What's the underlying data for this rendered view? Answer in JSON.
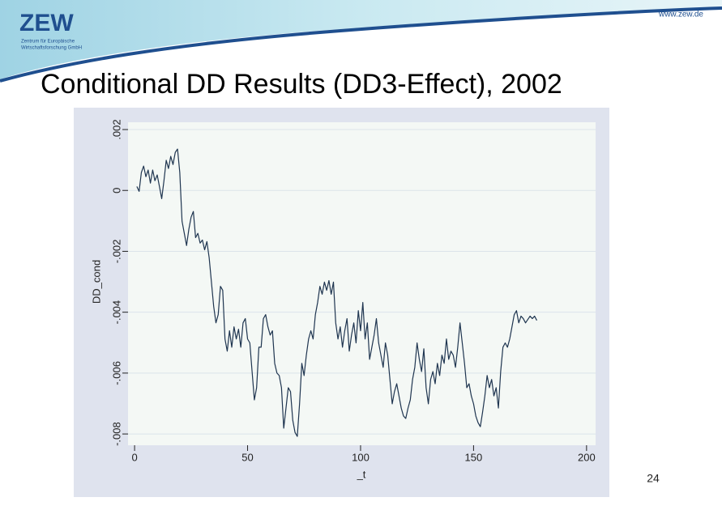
{
  "slide": {
    "title": "Conditional DD Results (DD3-Effect), 2002",
    "page_number": "24",
    "url": "www.zew.de",
    "logo": {
      "name": "ZEW",
      "subtitle_1": "Zentrum für Europäische",
      "subtitle_2": "Wirtschaftsforschung GmbH"
    }
  },
  "chart_data": {
    "type": "line",
    "xlabel": "_t",
    "ylabel": "DD_cond",
    "color": "#1f3550",
    "grid": true,
    "xlim": [
      -2.9,
      204
    ],
    "xticks": [
      0,
      50,
      100,
      150,
      200
    ],
    "ylim": [
      -0.00837,
      0.00224
    ],
    "yticks": [
      {
        "value": 0.002,
        "label": ".002"
      },
      0,
      {
        "value": -0.002,
        "label": "-.002"
      },
      {
        "value": -0.004,
        "label": "-.004"
      },
      {
        "value": -0.006,
        "label": "-.006"
      },
      {
        "value": -0.008,
        "label": "-.008"
      }
    ],
    "x": [
      1,
      2,
      3,
      4,
      5,
      6,
      7,
      8,
      9,
      10,
      11,
      12,
      13,
      14,
      15,
      16,
      17,
      18,
      19,
      20,
      21,
      22,
      23,
      24,
      25,
      26,
      27,
      28,
      29,
      30,
      31,
      32,
      33,
      34,
      35,
      36,
      37,
      38,
      39,
      40,
      41,
      42,
      43,
      44,
      45,
      46,
      47,
      48,
      49,
      50,
      51,
      52,
      53,
      54,
      55,
      56,
      57,
      58,
      59,
      60,
      61,
      62,
      63,
      64,
      65,
      66,
      67,
      68,
      69,
      70,
      71,
      72,
      73,
      74,
      75,
      76,
      77,
      78,
      79,
      80,
      81,
      82,
      83,
      84,
      85,
      86,
      87,
      88,
      89,
      90,
      91,
      92,
      93,
      94,
      95,
      96,
      97,
      98,
      99,
      100,
      101,
      102,
      103,
      104,
      105,
      106,
      107,
      108,
      109,
      110,
      111,
      112,
      113,
      114,
      115,
      116,
      117,
      118,
      119,
      120,
      121,
      122,
      123,
      124,
      125,
      126,
      127,
      128,
      129,
      130,
      131,
      132,
      133,
      134,
      135,
      136,
      137,
      138,
      139,
      140,
      141,
      142,
      143,
      144,
      145,
      146,
      147,
      148,
      149,
      150,
      151,
      152,
      153,
      154,
      155,
      156,
      157,
      158,
      159,
      160,
      161,
      162,
      163,
      164,
      165,
      166,
      167,
      168,
      169,
      170,
      171,
      172,
      173,
      174,
      175,
      176,
      177,
      178
    ],
    "values": [
      0.00013,
      -3e-05,
      0.00059,
      0.0008,
      0.00045,
      0.00067,
      0.00024,
      0.00067,
      0.00032,
      0.00051,
      0.00013,
      -0.00027,
      0.00032,
      0.00099,
      0.00072,
      0.00112,
      0.00085,
      0.00125,
      0.00136,
      0.00059,
      -0.00101,
      -0.00141,
      -0.00181,
      -0.00128,
      -0.00088,
      -0.00069,
      -0.00155,
      -0.00141,
      -0.00173,
      -0.00163,
      -0.00195,
      -0.00168,
      -0.00221,
      -0.00301,
      -0.00381,
      -0.00435,
      -0.00408,
      -0.00315,
      -0.00328,
      -0.00488,
      -0.00528,
      -0.00461,
      -0.00515,
      -0.00448,
      -0.00488,
      -0.00456,
      -0.00515,
      -0.00435,
      -0.00421,
      -0.00488,
      -0.00501,
      -0.00595,
      -0.00688,
      -0.00648,
      -0.00515,
      -0.00515,
      -0.00421,
      -0.00408,
      -0.00448,
      -0.00475,
      -0.00461,
      -0.00568,
      -0.006,
      -0.00608,
      -0.00648,
      -0.00781,
      -0.00715,
      -0.00648,
      -0.00661,
      -0.00755,
      -0.00795,
      -0.00808,
      -0.00701,
      -0.00568,
      -0.00608,
      -0.00541,
      -0.00488,
      -0.00461,
      -0.00488,
      -0.00408,
      -0.00368,
      -0.00315,
      -0.00341,
      -0.00301,
      -0.00328,
      -0.00296,
      -0.00341,
      -0.00301,
      -0.00435,
      -0.00488,
      -0.00448,
      -0.00515,
      -0.00461,
      -0.00421,
      -0.00528,
      -0.00475,
      -0.00435,
      -0.00501,
      -0.00395,
      -0.00461,
      -0.00368,
      -0.00488,
      -0.00435,
      -0.00555,
      -0.00515,
      -0.00475,
      -0.00421,
      -0.00501,
      -0.00541,
      -0.00581,
      -0.00501,
      -0.00541,
      -0.00621,
      -0.00701,
      -0.00661,
      -0.00635,
      -0.00675,
      -0.00715,
      -0.00741,
      -0.00749,
      -0.00715,
      -0.00688,
      -0.00621,
      -0.00581,
      -0.00501,
      -0.00555,
      -0.00595,
      -0.0052,
      -0.00648,
      -0.00701,
      -0.00621,
      -0.00595,
      -0.00635,
      -0.00568,
      -0.00608,
      -0.00541,
      -0.00568,
      -0.00488,
      -0.00555,
      -0.00528,
      -0.00541,
      -0.00581,
      -0.00515,
      -0.00435,
      -0.00501,
      -0.00568,
      -0.00648,
      -0.00635,
      -0.00675,
      -0.00701,
      -0.00741,
      -0.00763,
      -0.00776,
      -0.00728,
      -0.00675,
      -0.00608,
      -0.00648,
      -0.00621,
      -0.00675,
      -0.00648,
      -0.00715,
      -0.00595,
      -0.00515,
      -0.00501,
      -0.00515,
      -0.00488,
      -0.00448,
      -0.00408,
      -0.00395,
      -0.00435,
      -0.00413,
      -0.00421,
      -0.00435,
      -0.00424,
      -0.00413,
      -0.00421,
      -0.00413,
      -0.00427
    ]
  }
}
